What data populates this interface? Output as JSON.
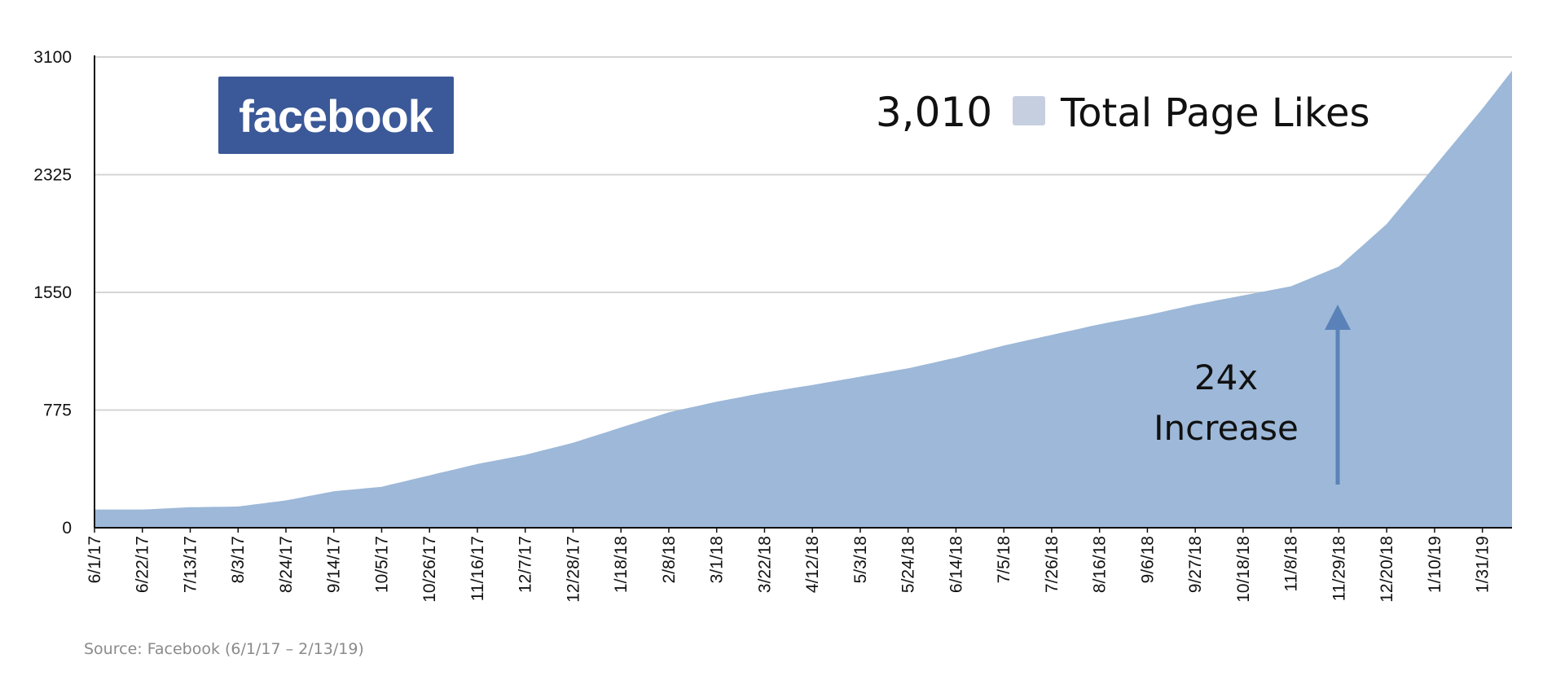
{
  "chart_data": {
    "type": "area",
    "y_ticks": [
      "3100",
      "2325",
      "1550",
      "775",
      "0"
    ],
    "ylim": [
      0,
      3100
    ],
    "grid": true,
    "x_ticks": [
      "6/1/17",
      "6/22/17",
      "7/13/17",
      "8/3/17",
      "8/24/17",
      "9/14/17",
      "10/5/17",
      "10/26/17",
      "11/16/17",
      "12/7/17",
      "12/28/17",
      "1/18/18",
      "2/8/18",
      "3/1/18",
      "3/22/18",
      "4/12/18",
      "5/3/18",
      "5/24/18",
      "6/14/18",
      "7/5/18",
      "7/26/18",
      "8/16/18",
      "9/6/18",
      "9/27/18",
      "10/18/18",
      "11/8/18",
      "11/29/18",
      "12/20/18",
      "1/10/19",
      "1/31/19"
    ],
    "x_start": "6/1/17",
    "x_end": "2/13/19",
    "series": [
      {
        "color": "#9db8d8",
        "points": [
          [
            "6/1/17",
            120
          ],
          [
            "6/22/17",
            120
          ],
          [
            "7/13/17",
            135
          ],
          [
            "8/3/17",
            140
          ],
          [
            "8/24/17",
            180
          ],
          [
            "9/14/17",
            240
          ],
          [
            "10/5/17",
            270
          ],
          [
            "10/26/17",
            345
          ],
          [
            "11/16/17",
            420
          ],
          [
            "12/7/17",
            480
          ],
          [
            "12/28/17",
            560
          ],
          [
            "1/18/18",
            660
          ],
          [
            "2/8/18",
            760
          ],
          [
            "3/1/18",
            830
          ],
          [
            "3/22/18",
            890
          ],
          [
            "4/12/18",
            940
          ],
          [
            "5/3/18",
            995
          ],
          [
            "5/24/18",
            1050
          ],
          [
            "6/14/18",
            1120
          ],
          [
            "7/5/18",
            1200
          ],
          [
            "7/26/18",
            1270
          ],
          [
            "8/16/18",
            1340
          ],
          [
            "9/6/18",
            1400
          ],
          [
            "9/27/18",
            1470
          ],
          [
            "10/18/18",
            1530
          ],
          [
            "11/8/18",
            1590
          ],
          [
            "11/29/18",
            1720
          ],
          [
            "12/20/18",
            2000
          ],
          [
            "1/10/19",
            2380
          ],
          [
            "1/31/19",
            2760
          ],
          [
            "2/13/19",
            3010
          ]
        ]
      }
    ],
    "legend": {
      "value": "3,010",
      "label": "Total Page Likes",
      "swatch_color": "#c5cfe0",
      "position": "top-right"
    },
    "annotation": {
      "line1": "24x",
      "line2": "Increase",
      "arrow_color": "#5b82b8"
    },
    "logo": {
      "text": "facebook",
      "bg_color": "#3b5998"
    },
    "source": "Source: Facebook (6/1/17 – 2/13/19)"
  }
}
